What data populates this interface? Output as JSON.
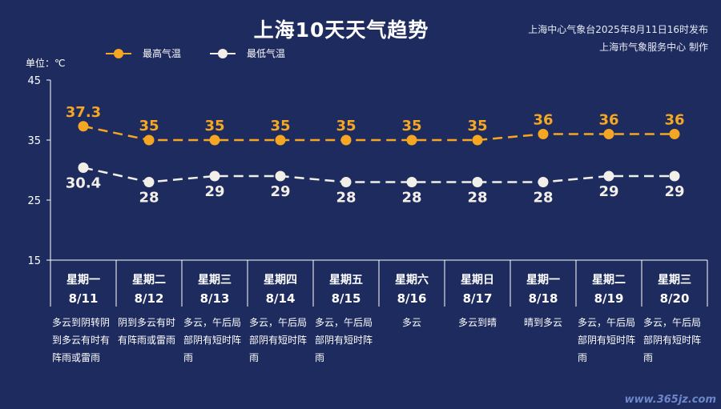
{
  "header": {
    "title": "上海10天天气趋势",
    "issuer": "上海中心气象台2025年8月11日16时发布",
    "maker": "上海市气象服务中心 制作",
    "unit": "单位：℃"
  },
  "colors": {
    "background": "#1e2b5e",
    "high": "#f5a623",
    "low": "#f2efe9",
    "axis": "#ffffff"
  },
  "chart_data": {
    "type": "line",
    "yticks": [
      15,
      25,
      35,
      45
    ],
    "ylim": [
      15,
      45
    ],
    "categories": [
      "8/11",
      "8/12",
      "8/13",
      "8/14",
      "8/15",
      "8/16",
      "8/17",
      "8/18",
      "8/19",
      "8/20"
    ],
    "series": [
      {
        "name": "最高气温",
        "values": [
          37.3,
          35,
          35,
          35,
          35,
          35,
          35,
          36,
          36,
          36
        ],
        "color": "#f5a623",
        "label_position": "above"
      },
      {
        "name": "最低气温",
        "values": [
          30.4,
          28,
          29,
          29,
          28,
          28,
          28,
          28,
          29,
          29
        ],
        "color": "#f2efe9",
        "label_position": "below"
      }
    ],
    "legend": "top-left"
  },
  "days": [
    {
      "weekday": "星期一",
      "date": "8/11",
      "weather": "多云到阴转阴到多云有时有阵雨或雷雨"
    },
    {
      "weekday": "星期二",
      "date": "8/12",
      "weather": "阴到多云有时有阵雨或雷雨"
    },
    {
      "weekday": "星期三",
      "date": "8/13",
      "weather": "多云，午后局部阴有短时阵雨"
    },
    {
      "weekday": "星期四",
      "date": "8/14",
      "weather": "多云，午后局部阴有短时阵雨"
    },
    {
      "weekday": "星期五",
      "date": "8/15",
      "weather": "多云，午后局部阴有短时阵雨"
    },
    {
      "weekday": "星期六",
      "date": "8/16",
      "weather": "多云"
    },
    {
      "weekday": "星期日",
      "date": "8/17",
      "weather": "多云到晴"
    },
    {
      "weekday": "星期一",
      "date": "8/18",
      "weather": "晴到多云"
    },
    {
      "weekday": "星期二",
      "date": "8/19",
      "weather": "多云，午后局部阴有短时阵雨"
    },
    {
      "weekday": "星期三",
      "date": "8/20",
      "weather": "多云，午后局部阴有短时阵雨"
    }
  ],
  "watermark": "www.365jz.com"
}
